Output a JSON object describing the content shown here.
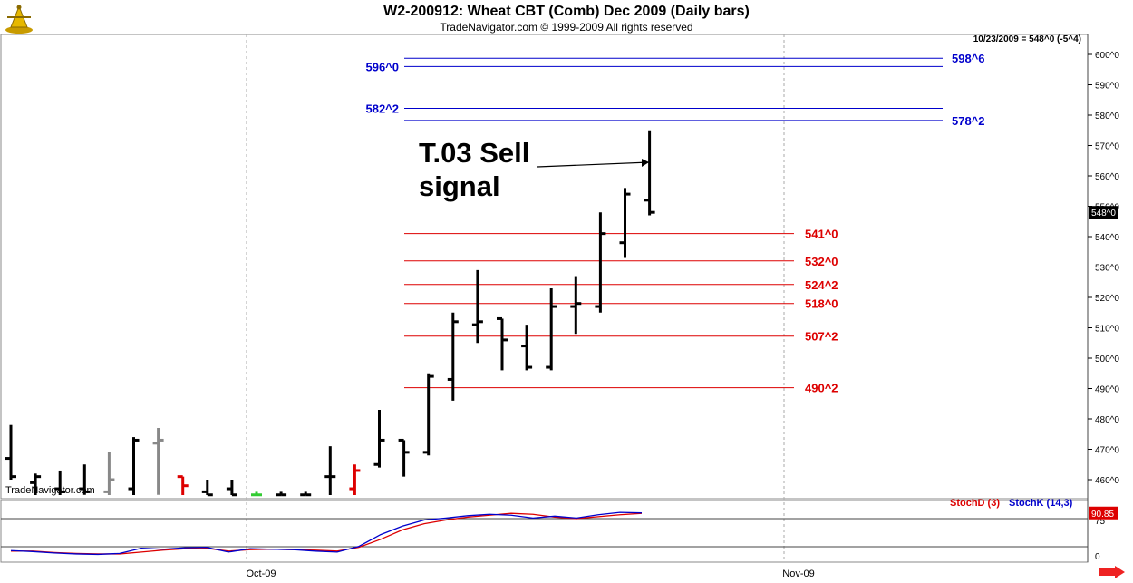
{
  "header": {
    "title": "W2-200912:  Wheat CBT (Comb) Dec 2009  (Daily bars)",
    "subtitle": "TradeNavigator.com © 1999-2009 All rights reserved",
    "stamp": "10/23/2009 = 548^0 (-5^4)",
    "watermark": "TradeNavigator.com"
  },
  "annotation": {
    "line1": "T.03 Sell",
    "line2": "signal"
  },
  "colors": {
    "support": "#dd0000",
    "resistance": "#0000cc",
    "bar": "#000000",
    "stoch_d": "#dd0000",
    "stoch_k": "#0000cc"
  },
  "chart_data": [
    {
      "type": "bar",
      "title": "W2-200912:  Wheat CBT (Comb) Dec 2009  (Daily bars)",
      "ylim": [
        450,
        605
      ],
      "y_ticks": [
        "460^0",
        "470^0",
        "480^0",
        "490^0",
        "500^0",
        "510^0",
        "520^0",
        "530^0",
        "540^0",
        "550^0",
        "560^0",
        "570^0",
        "580^0",
        "590^0",
        "600^0"
      ],
      "x_ticks": [
        "Oct-09",
        "Nov-09"
      ],
      "last_price_label": "548^0",
      "ohlc": [
        {
          "o": 467,
          "h": 478,
          "l": 460,
          "c": 461,
          "color": "#000000"
        },
        {
          "o": 459,
          "h": 462,
          "l": 454,
          "c": 461,
          "color": "#000000"
        },
        {
          "o": 457,
          "h": 463,
          "l": 453,
          "c": 456,
          "color": "#000000"
        },
        {
          "o": 457,
          "h": 465,
          "l": 455,
          "c": 456,
          "color": "#000000"
        },
        {
          "o": 456,
          "h": 469,
          "l": 450,
          "c": 460,
          "color": "#888888"
        },
        {
          "o": 457,
          "h": 474,
          "l": 450,
          "c": 473,
          "color": "#000000"
        },
        {
          "o": 472,
          "h": 477,
          "l": 455,
          "c": 473,
          "color": "#888888"
        },
        {
          "o": 461,
          "h": 461,
          "l": 452,
          "c": 458,
          "color": "#dd0000"
        },
        {
          "o": 456,
          "h": 460,
          "l": 453,
          "c": 455,
          "color": "#000000"
        },
        {
          "o": 457,
          "h": 460,
          "l": 452,
          "c": 455,
          "color": "#000000"
        },
        {
          "o": 455,
          "h": 456,
          "l": 452,
          "c": 455,
          "color": "#33cc33"
        },
        {
          "o": 455,
          "h": 456,
          "l": 452,
          "c": 455,
          "color": "#000000"
        },
        {
          "o": 455,
          "h": 456,
          "l": 452,
          "c": 455,
          "color": "#000000"
        },
        {
          "o": 461,
          "h": 471,
          "l": 453,
          "c": 461,
          "color": "#000000"
        },
        {
          "o": 457,
          "h": 465,
          "l": 452,
          "c": 463,
          "color": "#dd0000"
        },
        {
          "o": 465,
          "h": 483,
          "l": 464,
          "c": 473,
          "color": "#000000"
        },
        {
          "o": 473,
          "h": 473,
          "l": 461,
          "c": 469,
          "color": "#000000"
        },
        {
          "o": 469,
          "h": 495,
          "l": 468,
          "c": 494,
          "color": "#000000"
        },
        {
          "o": 493,
          "h": 515,
          "l": 486,
          "c": 512,
          "color": "#000000"
        },
        {
          "o": 511,
          "h": 529,
          "l": 505,
          "c": 512,
          "color": "#000000"
        },
        {
          "o": 513,
          "h": 513,
          "l": 496,
          "c": 506,
          "color": "#000000"
        },
        {
          "o": 504,
          "h": 511,
          "l": 496,
          "c": 497,
          "color": "#000000"
        },
        {
          "o": 497,
          "h": 523,
          "l": 496,
          "c": 517,
          "color": "#000000"
        },
        {
          "o": 517,
          "h": 527,
          "l": 508,
          "c": 518,
          "color": "#000000"
        },
        {
          "o": 517,
          "h": 548,
          "l": 515,
          "c": 541,
          "color": "#000000"
        },
        {
          "o": 538,
          "h": 556,
          "l": 533,
          "c": 554,
          "color": "#000000"
        },
        {
          "o": 552,
          "h": 575,
          "l": 547,
          "c": 548,
          "color": "#000000"
        }
      ],
      "levels": [
        {
          "value": 598.75,
          "label": "598^6",
          "group": "resistance",
          "side": "right"
        },
        {
          "value": 596,
          "label": "596^0",
          "group": "resistance",
          "side": "left"
        },
        {
          "value": 582.25,
          "label": "582^2",
          "group": "resistance",
          "side": "left"
        },
        {
          "value": 578.25,
          "label": "578^2",
          "group": "resistance",
          "side": "right"
        },
        {
          "value": 541,
          "label": "541^0",
          "group": "support",
          "side": "right"
        },
        {
          "value": 532,
          "label": "532^0",
          "group": "support",
          "side": "right"
        },
        {
          "value": 524.25,
          "label": "524^2",
          "group": "support",
          "side": "right"
        },
        {
          "value": 518,
          "label": "518^0",
          "group": "support",
          "side": "right"
        },
        {
          "value": 507.25,
          "label": "507^2",
          "group": "support",
          "side": "right"
        },
        {
          "value": 490.25,
          "label": "490^2",
          "group": "support",
          "side": "right"
        }
      ]
    },
    {
      "type": "line",
      "ylim": [
        0,
        100
      ],
      "y_ticks": [
        "0",
        "75"
      ],
      "last_value_label": "90.85",
      "series": [
        {
          "name": "StochD (3)",
          "values": [
            10,
            10,
            7,
            5,
            4,
            4,
            8,
            12,
            15,
            16,
            10,
            13,
            14,
            13,
            12,
            10,
            18,
            35,
            55,
            68,
            76,
            82,
            86,
            90,
            88,
            82,
            79,
            83,
            87,
            90
          ]
        },
        {
          "name": "StochK (14,3)",
          "values": [
            11,
            9,
            6,
            4,
            3,
            5,
            16,
            14,
            17,
            18,
            8,
            15,
            14,
            13,
            10,
            8,
            20,
            45,
            63,
            76,
            80,
            85,
            88,
            86,
            80,
            84,
            80,
            87,
            92,
            91
          ]
        }
      ]
    }
  ]
}
